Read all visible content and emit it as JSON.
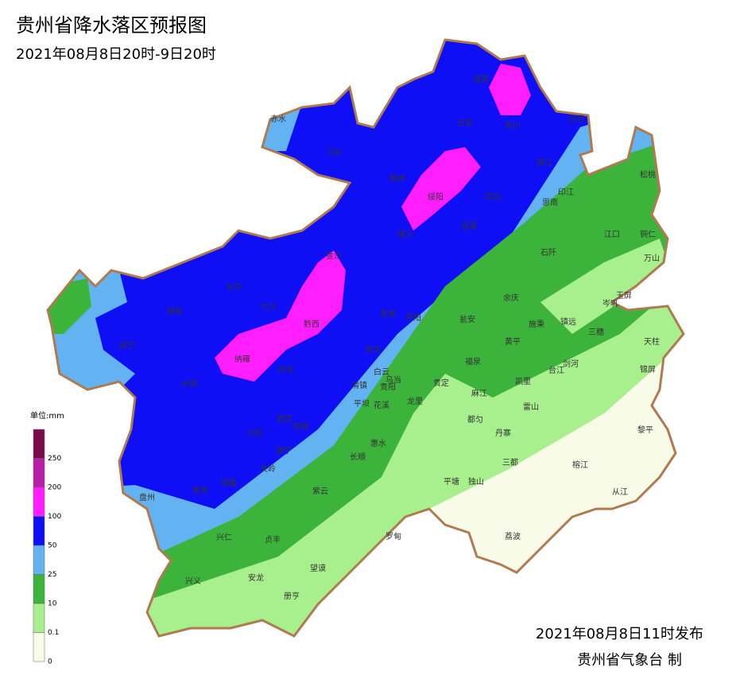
{
  "header": {
    "title": "贵州省降水落区预报图",
    "subtitle": "2021年08月8日20时-9日20时"
  },
  "legend": {
    "title": "单位:mm",
    "items": [
      {
        "label": "250",
        "color": "#7a0a4a"
      },
      {
        "label": "200",
        "color": "#b81ea8"
      },
      {
        "label": "100",
        "color": "#ff1eff"
      },
      {
        "label": "50",
        "color": "#0f0ff5"
      },
      {
        "label": "25",
        "color": "#63b3f2"
      },
      {
        "label": "10",
        "color": "#3cb43c"
      },
      {
        "label": "0.1",
        "color": "#a8f08e"
      },
      {
        "label": "0",
        "color": "#f8fbe8"
      }
    ]
  },
  "places": [
    "赤水",
    "习水",
    "道真",
    "正安",
    "务川",
    "沿河",
    "桐梓",
    "绥阳",
    "凤冈",
    "德江",
    "印江",
    "思南",
    "湄潭",
    "遵义",
    "松桃",
    "江口",
    "铜仁",
    "万山",
    "石阡",
    "金沙",
    "毕节",
    "大方",
    "赫章",
    "黔西",
    "息烽",
    "开阳",
    "瓮安",
    "余庆",
    "施秉",
    "镇远",
    "玉屏",
    "岑巩",
    "三穗",
    "天柱",
    "锦屏",
    "威宁",
    "纳雍",
    "织金",
    "修文",
    "黄平",
    "剑河",
    "台江",
    "福泉",
    "白云",
    "乌当",
    "贵定",
    "凯里",
    "麻江",
    "清镇",
    "贵阳",
    "龙里",
    "花溪",
    "雷山",
    "平坝",
    "水城",
    "普定",
    "安顺",
    "都匀",
    "丹寨",
    "黎平",
    "惠水",
    "镇宁",
    "长顺",
    "三都",
    "榕江",
    "关岭",
    "平塘",
    "独山",
    "盘州",
    "普安",
    "晴隆",
    "从江",
    "紫云",
    "荔波",
    "兴仁",
    "贞丰",
    "罗甸",
    "望谟",
    "兴义",
    "安龙",
    "册亨",
    "六枝"
  ],
  "footer": {
    "issued": "2021年08月8日11时发布",
    "maker": "贵州省气象台 制"
  }
}
